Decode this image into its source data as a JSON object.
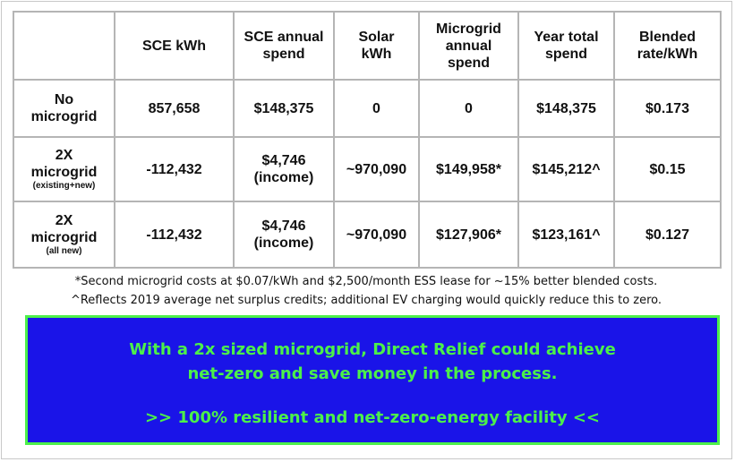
{
  "table": {
    "headers": [
      [
        "SCE kWh"
      ],
      [
        "SCE annual",
        "spend"
      ],
      [
        "Solar",
        "kWh"
      ],
      [
        "Microgrid",
        "annual",
        "spend"
      ],
      [
        "Year total",
        "spend"
      ],
      [
        "Blended",
        "rate/kWh"
      ]
    ],
    "rows": [
      {
        "label": [
          "No",
          "microgrid"
        ],
        "cells": [
          [
            "857,658"
          ],
          [
            "$148,375"
          ],
          [
            "0"
          ],
          [
            "0"
          ],
          [
            "$148,375"
          ],
          [
            "$0.173"
          ]
        ]
      },
      {
        "label": [
          "2X",
          "microgrid"
        ],
        "sublabel": "(existing+new)",
        "cells": [
          [
            "-112,432"
          ],
          [
            "$4,746",
            "(income)"
          ],
          [
            "~970,090"
          ],
          [
            "$149,958*"
          ],
          [
            "$145,212^"
          ],
          [
            "$0.15"
          ]
        ]
      },
      {
        "label": [
          "2X",
          "microgrid"
        ],
        "sublabel": "(all new)",
        "cells": [
          [
            "-112,432"
          ],
          [
            "$4,746",
            "(income)"
          ],
          [
            "~970,090"
          ],
          [
            "$127,906*"
          ],
          [
            "$123,161^"
          ],
          [
            "$0.127"
          ]
        ]
      }
    ]
  },
  "notes": [
    "*Second microgrid costs at $0.07/kWh and $2,500/month ESS lease for ~15% better blended costs.",
    "^Reflects 2019 average net surplus credits; additional EV charging would quickly reduce this to zero."
  ],
  "banner": {
    "lines": [
      "With a 2x sized microgrid, Direct Relief could achieve",
      "net-zero and save money in the process.",
      ">> 100% resilient and net-zero-energy facility <<"
    ]
  }
}
